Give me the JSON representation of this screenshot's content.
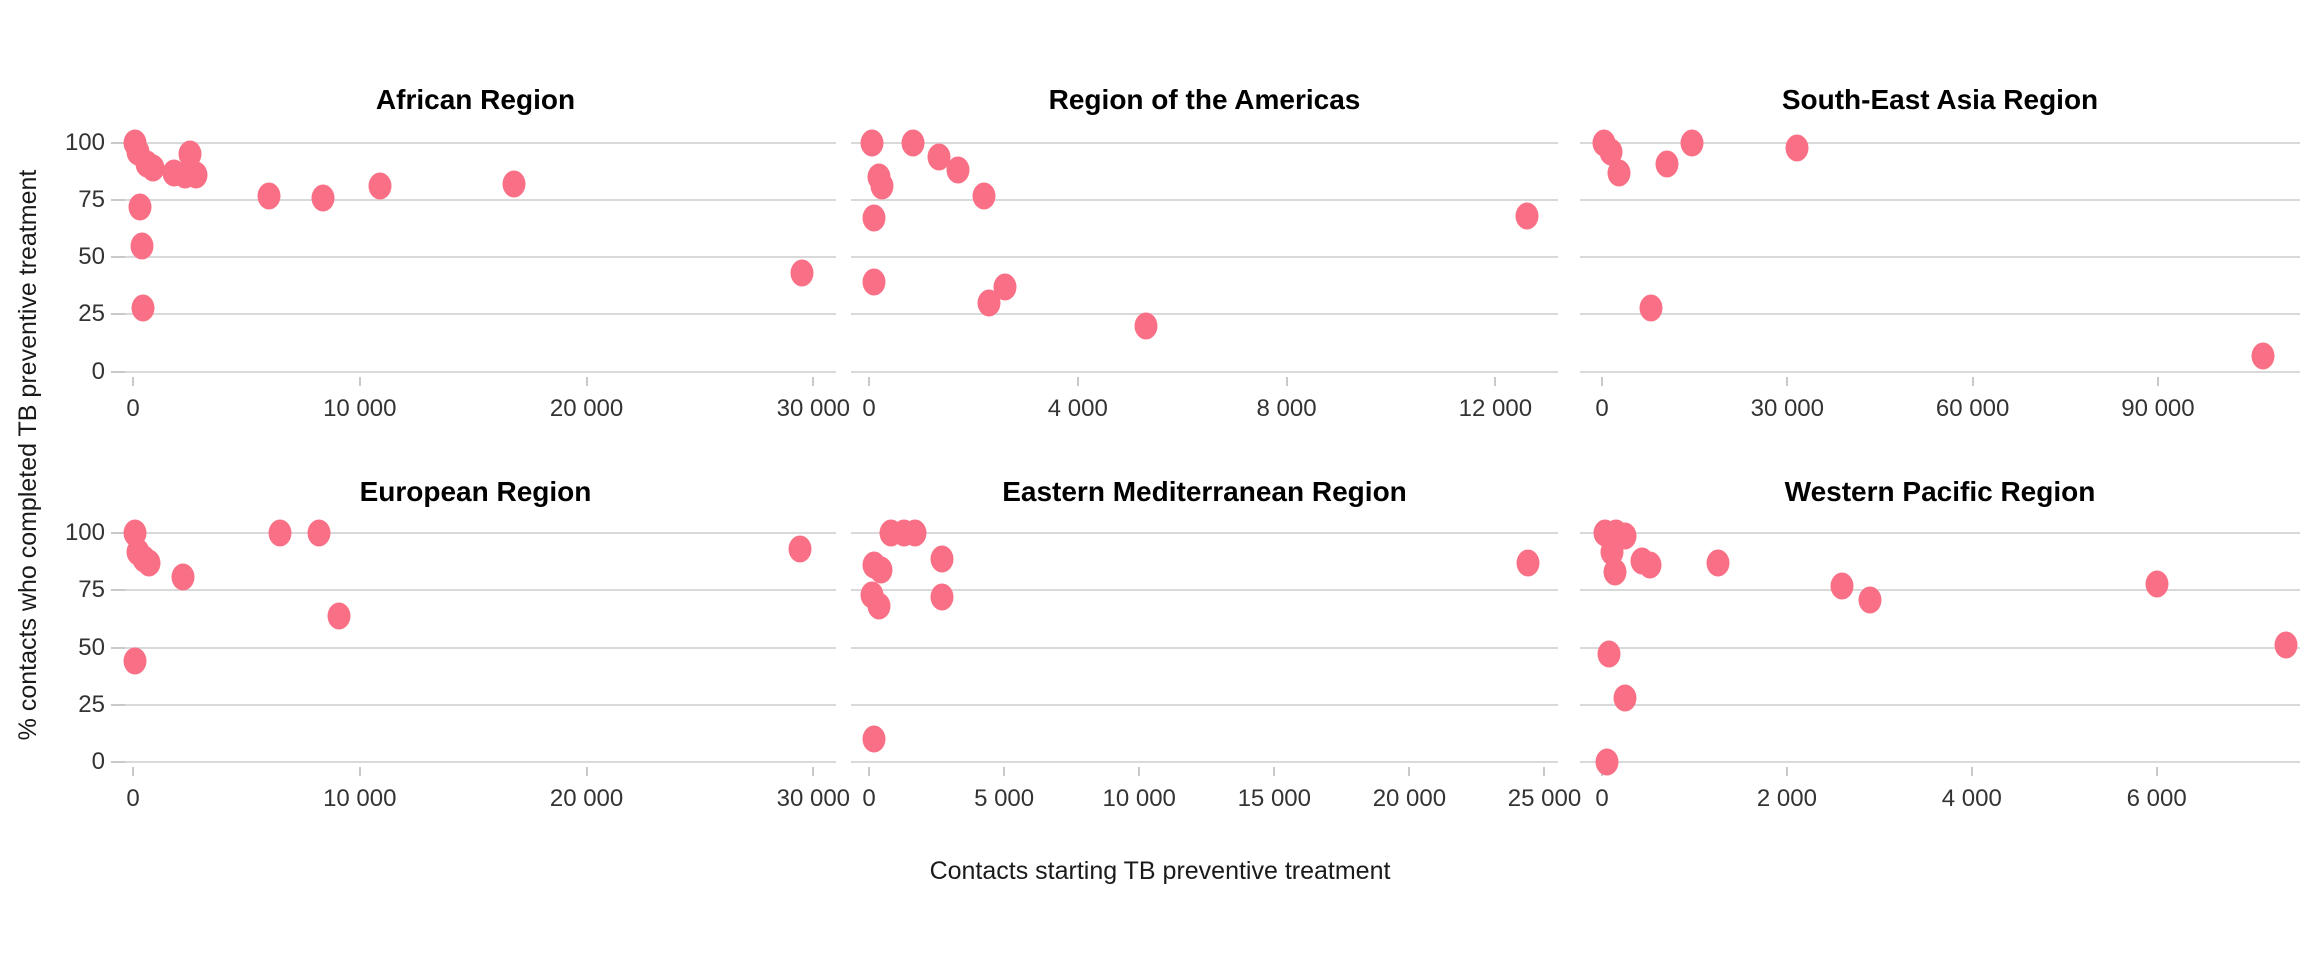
{
  "figure": {
    "xlabel": "Contacts starting TB preventive treatment",
    "ylabel": "% contacts who completed TB preventive treatment"
  },
  "chart_data": {
    "type": "scatter",
    "xlabel": "Contacts starting TB preventive treatment",
    "ylabel": "% contacts who completed TB preventive treatment",
    "ylim": [
      0,
      100
    ],
    "yticks": [
      100,
      75,
      50,
      25,
      0
    ],
    "grid": "horizontal-only",
    "dot_color": "#f97086",
    "panels": [
      {
        "title": "African Region",
        "xmax": 31000,
        "x_ticks": [
          {
            "value": 0,
            "label": "0"
          },
          {
            "value": 10000,
            "label": "10 000"
          },
          {
            "value": 20000,
            "label": "20 000"
          },
          {
            "value": 30000,
            "label": "30 000"
          }
        ],
        "points": [
          [
            100,
            100
          ],
          [
            200,
            96
          ],
          [
            600,
            91
          ],
          [
            900,
            89
          ],
          [
            1800,
            87
          ],
          [
            2300,
            86
          ],
          [
            2500,
            95
          ],
          [
            2800,
            86
          ],
          [
            300,
            72
          ],
          [
            400,
            55
          ],
          [
            450,
            28
          ],
          [
            6000,
            77
          ],
          [
            8400,
            76
          ],
          [
            10900,
            81
          ],
          [
            16800,
            82
          ],
          [
            29500,
            43
          ]
        ]
      },
      {
        "title": "Region of the Americas",
        "xmax": 13200,
        "x_ticks": [
          {
            "value": 0,
            "label": "0"
          },
          {
            "value": 4000,
            "label": "4 000"
          },
          {
            "value": 8000,
            "label": "8 000"
          },
          {
            "value": 12000,
            "label": "12 000"
          }
        ],
        "points": [
          [
            50,
            100
          ],
          [
            850,
            100
          ],
          [
            1340,
            94
          ],
          [
            1700,
            88
          ],
          [
            2200,
            77
          ],
          [
            200,
            85
          ],
          [
            250,
            81
          ],
          [
            100,
            67
          ],
          [
            100,
            39
          ],
          [
            2600,
            37
          ],
          [
            2300,
            30
          ],
          [
            5300,
            20
          ],
          [
            12600,
            68
          ]
        ]
      },
      {
        "title": "South-East Asia Region",
        "xmax": 113000,
        "x_ticks": [
          {
            "value": 0,
            "label": "0"
          },
          {
            "value": 30000,
            "label": "30 000"
          },
          {
            "value": 60000,
            "label": "60 000"
          },
          {
            "value": 90000,
            "label": "90 000"
          }
        ],
        "points": [
          [
            400,
            100
          ],
          [
            1500,
            96
          ],
          [
            2800,
            87
          ],
          [
            10500,
            91
          ],
          [
            14500,
            100
          ],
          [
            31600,
            98
          ],
          [
            8000,
            28
          ],
          [
            107000,
            7
          ]
        ]
      },
      {
        "title": "European Region",
        "xmax": 31000,
        "x_ticks": [
          {
            "value": 0,
            "label": "0"
          },
          {
            "value": 10000,
            "label": "10 000"
          },
          {
            "value": 20000,
            "label": "20 000"
          },
          {
            "value": 30000,
            "label": "30 000"
          }
        ],
        "points": [
          [
            100,
            100
          ],
          [
            200,
            92
          ],
          [
            500,
            89
          ],
          [
            700,
            87
          ],
          [
            2200,
            81
          ],
          [
            6500,
            100
          ],
          [
            8200,
            100
          ],
          [
            9100,
            64
          ],
          [
            100,
            44
          ],
          [
            29400,
            93
          ]
        ]
      },
      {
        "title": "Eastern Mediterranean Region",
        "xmax": 25500,
        "x_ticks": [
          {
            "value": 0,
            "label": "0"
          },
          {
            "value": 5000,
            "label": "5 000"
          },
          {
            "value": 10000,
            "label": "10 000"
          },
          {
            "value": 15000,
            "label": "15 000"
          },
          {
            "value": 20000,
            "label": "20 000"
          },
          {
            "value": 25000,
            "label": "25 000"
          }
        ],
        "points": [
          [
            800,
            100
          ],
          [
            1300,
            100
          ],
          [
            1700,
            100
          ],
          [
            200,
            86
          ],
          [
            450,
            84
          ],
          [
            2700,
            89
          ],
          [
            100,
            73
          ],
          [
            370,
            68
          ],
          [
            2700,
            72
          ],
          [
            200,
            10
          ],
          [
            24400,
            87
          ]
        ]
      },
      {
        "title": "Western Pacific Region",
        "xmax": 7550,
        "x_ticks": [
          {
            "value": 0,
            "label": "0"
          },
          {
            "value": 2000,
            "label": "2 000"
          },
          {
            "value": 4000,
            "label": "4 000"
          },
          {
            "value": 6000,
            "label": "6 000"
          }
        ],
        "points": [
          [
            30,
            100
          ],
          [
            150,
            100
          ],
          [
            250,
            99
          ],
          [
            110,
            92
          ],
          [
            140,
            83
          ],
          [
            430,
            88
          ],
          [
            520,
            86
          ],
          [
            1250,
            87
          ],
          [
            2600,
            77
          ],
          [
            2900,
            71
          ],
          [
            6000,
            78
          ],
          [
            80,
            47
          ],
          [
            7400,
            51
          ],
          [
            250,
            28
          ],
          [
            50,
            0
          ]
        ]
      }
    ]
  }
}
